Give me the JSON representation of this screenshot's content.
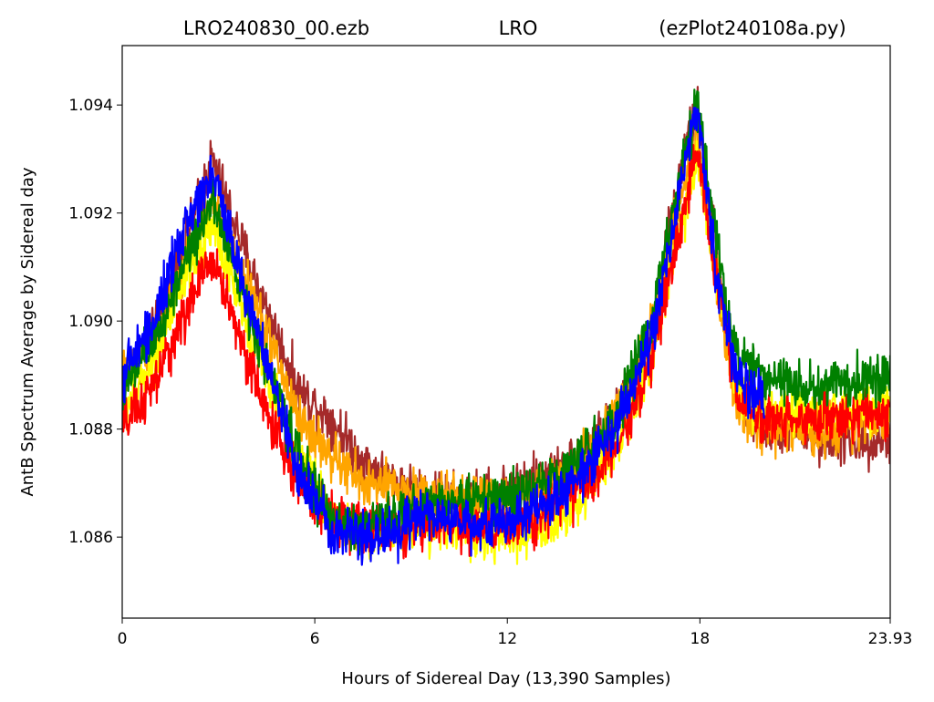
{
  "chart_data": {
    "type": "line",
    "title_left": "LRO240830_00.ezb",
    "title_center": "LRO",
    "title_right": "(ezPlot240108a.py)",
    "xlabel": "Hours of Sidereal Day  (13,390 Samples)",
    "ylabel": "AntB Spectrum Average by Sidereal day",
    "xlim": [
      0,
      23.93
    ],
    "ylim": [
      1.0845,
      1.0951
    ],
    "x_ticks": [
      0,
      6,
      12,
      18,
      23.93
    ],
    "x_tick_labels": [
      "0",
      "6",
      "12",
      "18",
      "23.93"
    ],
    "y_ticks": [
      1.086,
      1.088,
      1.09,
      1.092,
      1.094
    ],
    "y_tick_labels": [
      "1.086",
      "1.088",
      "1.090",
      "1.092",
      "1.094"
    ],
    "grid": false,
    "legend": "none",
    "series": [
      {
        "color": "#a52a2a",
        "noise": 0.00045,
        "x": [
          0,
          1,
          2,
          2.8,
          3.5,
          4.5,
          5.5,
          6.5,
          7.5,
          8.5,
          9.5,
          10.5,
          11.5,
          12.5,
          13.5,
          14.5,
          15.5,
          16.5,
          17.3,
          17.9,
          18.6,
          19.2,
          20,
          21,
          22,
          23.93
        ],
        "y": [
          1.0888,
          1.0898,
          1.0915,
          1.093,
          1.0918,
          1.0902,
          1.0887,
          1.0882,
          1.0874,
          1.087,
          1.0868,
          1.0867,
          1.0868,
          1.087,
          1.0872,
          1.0876,
          1.0883,
          1.0898,
          1.0925,
          1.094,
          1.091,
          1.0885,
          1.088,
          1.088,
          1.0878,
          1.0878
        ]
      },
      {
        "color": "#ffa500",
        "noise": 0.00045,
        "x": [
          0,
          1,
          2,
          2.8,
          3.5,
          4.5,
          5.5,
          6.5,
          7.5,
          8.5,
          9.5,
          10.5,
          11.5,
          12.5,
          13.5,
          14.5,
          15.5,
          16.5,
          17.3,
          17.9,
          18.6,
          19.2,
          20,
          21,
          22,
          23.93
        ],
        "y": [
          1.089,
          1.0896,
          1.091,
          1.0922,
          1.0912,
          1.0898,
          1.0882,
          1.0875,
          1.087,
          1.0869,
          1.0868,
          1.0867,
          1.0866,
          1.0867,
          1.087,
          1.0875,
          1.0884,
          1.0898,
          1.092,
          1.0935,
          1.0905,
          1.0883,
          1.088,
          1.088,
          1.088,
          1.0882
        ]
      },
      {
        "color": "#ffff00",
        "noise": 0.00045,
        "x": [
          0,
          1,
          2,
          2.8,
          3.5,
          4.5,
          5.5,
          6.5,
          7.5,
          8.5,
          9.5,
          10.5,
          11.5,
          12.5,
          13.5,
          14.5,
          15.5,
          16.5,
          17.3,
          17.9,
          18.6,
          19.2,
          20,
          21,
          22,
          23.93
        ],
        "y": [
          1.0883,
          1.0893,
          1.0908,
          1.0918,
          1.0906,
          1.089,
          1.0875,
          1.0865,
          1.086,
          1.0861,
          1.0862,
          1.0862,
          1.086,
          1.086,
          1.0863,
          1.0868,
          1.0878,
          1.0893,
          1.0915,
          1.093,
          1.0905,
          1.0885,
          1.0883,
          1.0883,
          1.0883,
          1.0885
        ]
      },
      {
        "color": "#ff0000",
        "noise": 0.00045,
        "x": [
          0,
          1,
          2,
          2.8,
          3.5,
          4.5,
          5.5,
          6.5,
          7.5,
          8.5,
          9.5,
          10.5,
          11.5,
          12.5,
          13.5,
          14.5,
          15.5,
          16.5,
          17.3,
          17.9,
          18.6,
          19.2,
          20,
          21,
          22,
          23.93
        ],
        "y": [
          1.088,
          1.0888,
          1.0902,
          1.0912,
          1.09,
          1.0883,
          1.087,
          1.0864,
          1.0862,
          1.0862,
          1.0862,
          1.0862,
          1.0861,
          1.0863,
          1.0866,
          1.087,
          1.0878,
          1.0893,
          1.0915,
          1.0932,
          1.0905,
          1.0885,
          1.0882,
          1.0882,
          1.0882,
          1.0883
        ]
      },
      {
        "color": "#008000",
        "noise": 0.00045,
        "x": [
          0,
          1,
          2,
          2.8,
          3.5,
          4.5,
          5.5,
          6.5,
          7.5,
          8.5,
          9.5,
          10.5,
          11.5,
          12.5,
          13.5,
          14.5,
          15.5,
          16.5,
          17.3,
          17.9,
          18.6,
          19.2,
          20,
          21,
          22,
          23.93
        ],
        "y": [
          1.0887,
          1.0896,
          1.0912,
          1.0922,
          1.091,
          1.0892,
          1.0875,
          1.0863,
          1.0862,
          1.0864,
          1.0866,
          1.0867,
          1.0867,
          1.0868,
          1.0871,
          1.0876,
          1.0884,
          1.09,
          1.0925,
          1.094,
          1.0912,
          1.0892,
          1.089,
          1.0888,
          1.0888,
          1.089
        ]
      },
      {
        "color": "#0000ff",
        "noise": 0.00045,
        "x": [
          0,
          1,
          2,
          2.8,
          3.5,
          4.5,
          5.5,
          6.5,
          7.5,
          8.5,
          9.5,
          10.5,
          11.5,
          12.5,
          13.5,
          14.5,
          15.5,
          16.5,
          17.3,
          17.9,
          18.6,
          19.2,
          20
        ],
        "y": [
          1.089,
          1.09,
          1.0918,
          1.0928,
          1.0913,
          1.0892,
          1.0872,
          1.0862,
          1.086,
          1.0861,
          1.0864,
          1.0863,
          1.0862,
          1.0864,
          1.0867,
          1.0873,
          1.0882,
          1.0896,
          1.0922,
          1.094,
          1.0905,
          1.0889,
          1.0886
        ]
      }
    ]
  }
}
